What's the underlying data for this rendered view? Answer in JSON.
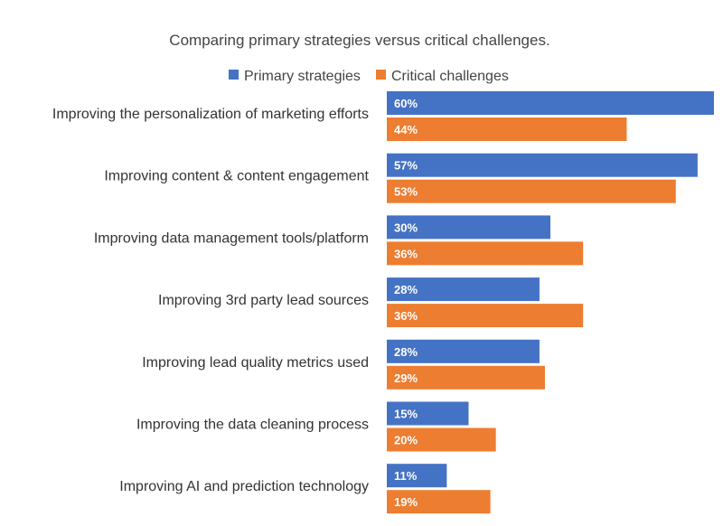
{
  "chart_data": {
    "type": "bar",
    "orientation": "horizontal",
    "title": "Comparing primary strategies versus critical challenges.",
    "categories": [
      "Improving the personalization of marketing efforts",
      "Improving content & content engagement",
      "Improving data management tools/platform",
      "Improving 3rd party lead sources",
      "Improving lead quality metrics used",
      "Improving the data cleaning process",
      "Improving AI and prediction technology"
    ],
    "series": [
      {
        "name": "Primary strategies",
        "color": "#4472C4",
        "values": [
          60,
          57,
          30,
          28,
          28,
          15,
          11
        ],
        "labels": [
          "60%",
          "57%",
          "30%",
          "28%",
          "28%",
          "15%",
          "11%"
        ]
      },
      {
        "name": "Critical challenges",
        "color": "#ED7D31",
        "values": [
          44,
          53,
          36,
          36,
          29,
          20,
          19
        ],
        "labels": [
          "44%",
          "53%",
          "36%",
          "36%",
          "29%",
          "20%",
          "19%"
        ]
      }
    ],
    "xlim": [
      0,
      60
    ],
    "grid": false,
    "legend": "top"
  }
}
